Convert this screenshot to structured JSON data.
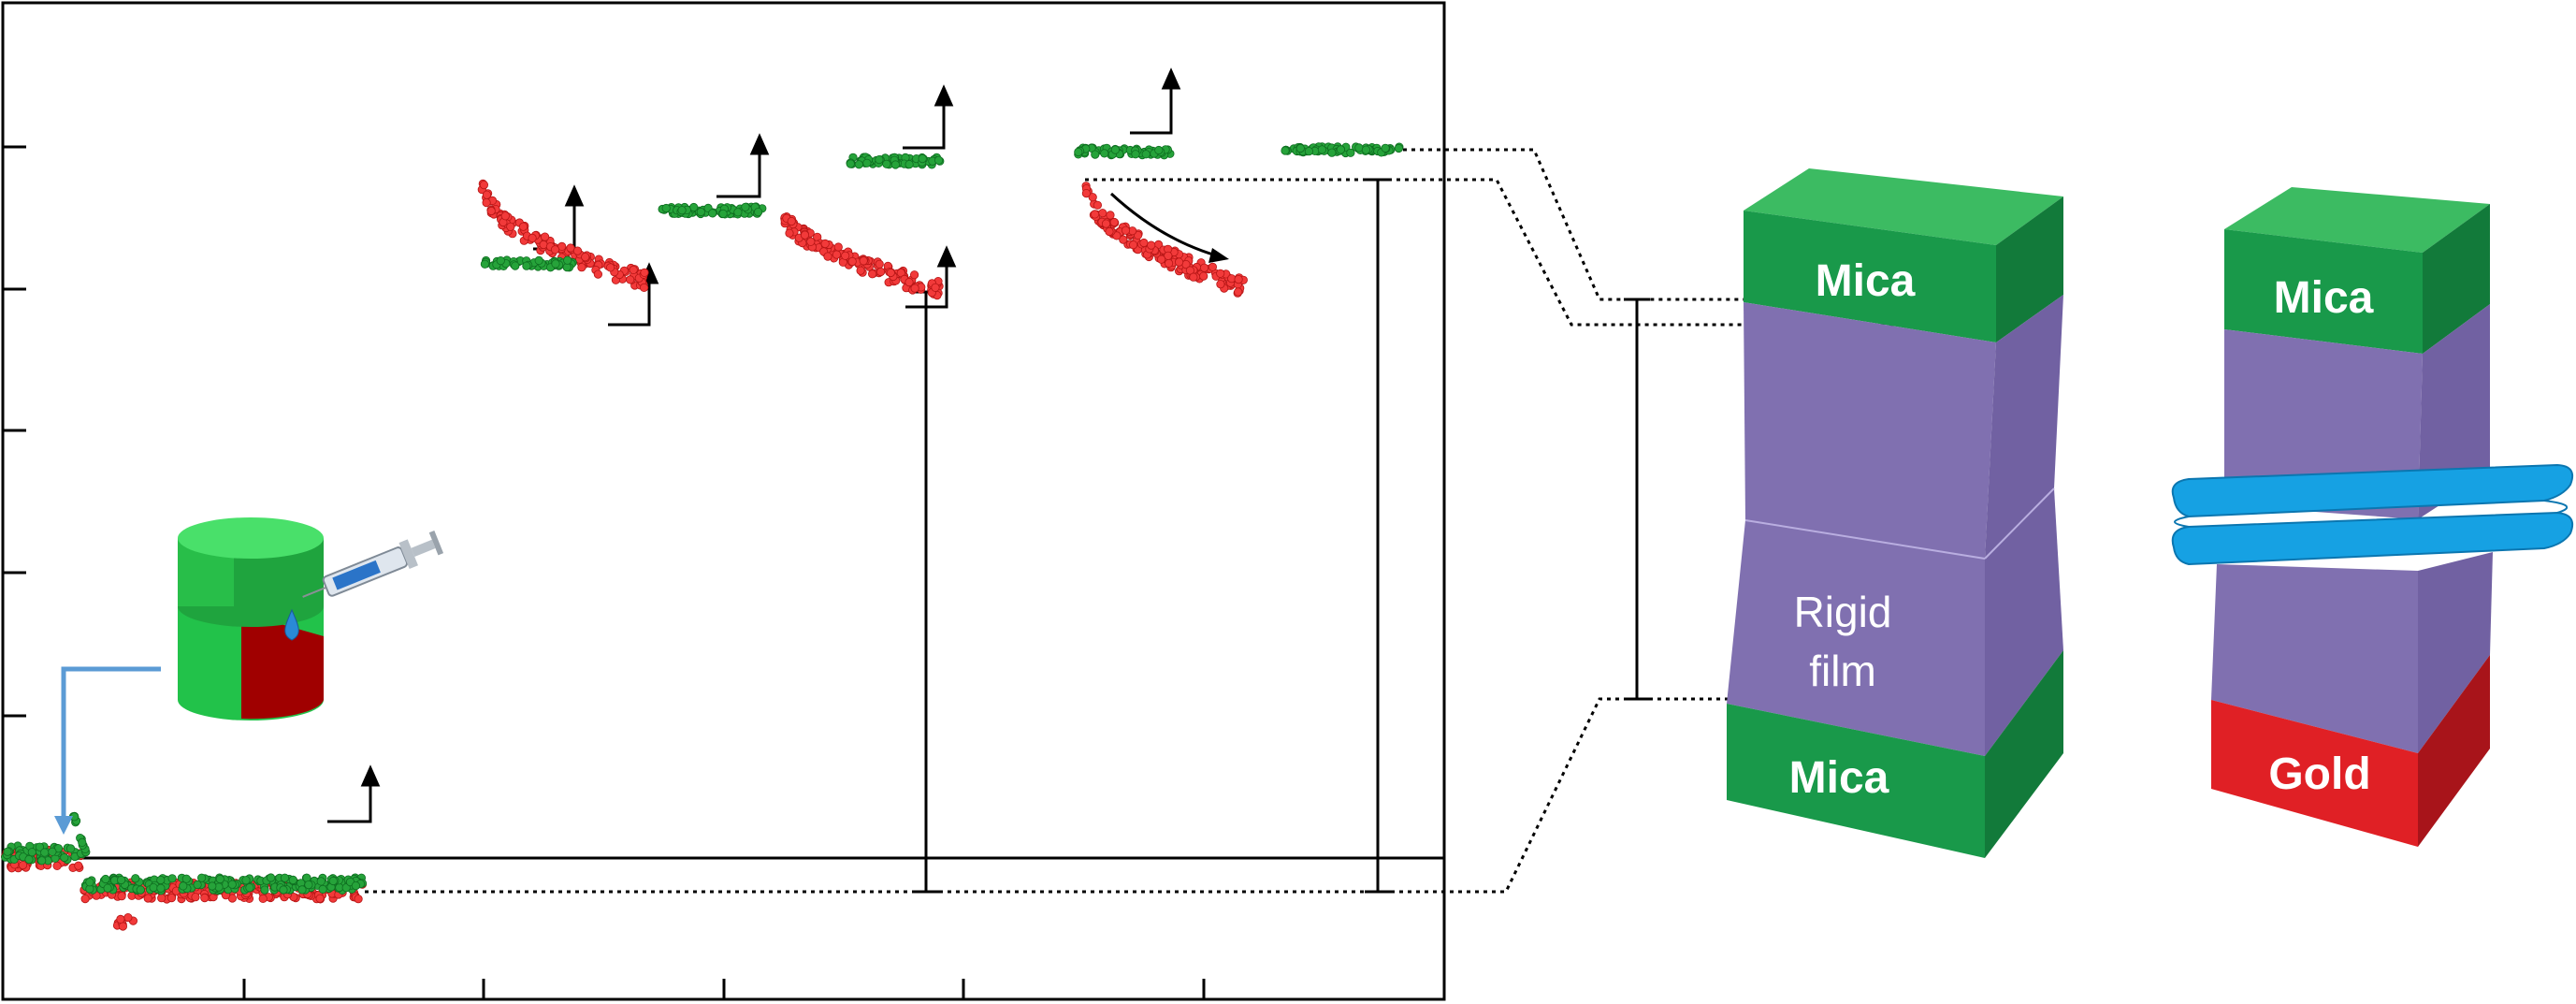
{
  "labels": {
    "mica_top_left": "Mica",
    "rigid_film_line1": "Rigid",
    "rigid_film_line2": "film",
    "mica_bottom_left": "Mica",
    "mica_top_right": "Mica",
    "gold_bottom_right": "Gold"
  },
  "colors": {
    "mica": "#1e9a48",
    "film": "#8070b0",
    "gold": "#e02025",
    "bilayer": "#16a1e3",
    "trace_green": "#26a33a",
    "trace_red": "#f23a3a",
    "arrow_blue": "#5b9bd5"
  },
  "icons": [
    "syringe-icon",
    "cylinder-cell-icon",
    "droplet-icon"
  ]
}
